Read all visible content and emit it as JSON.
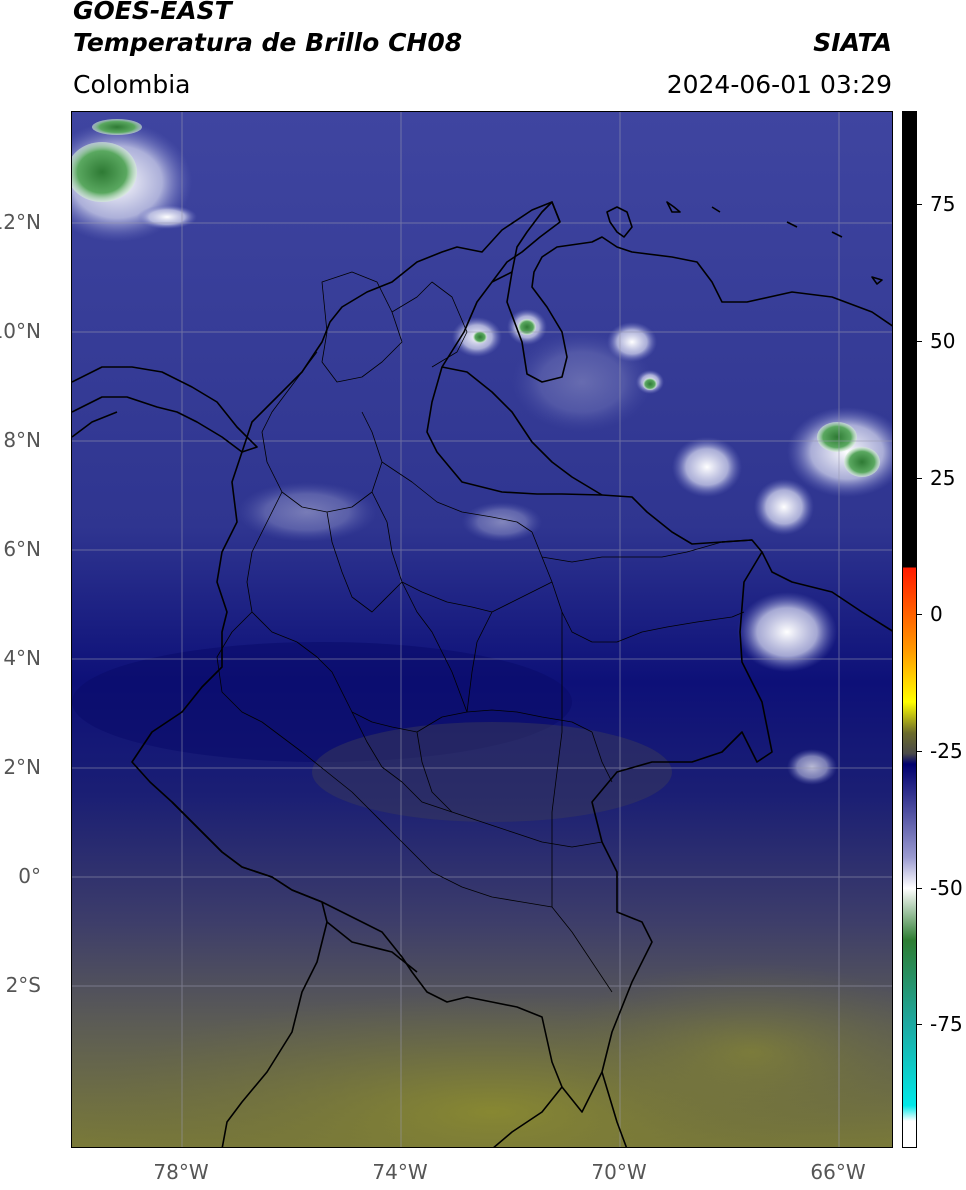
{
  "header": {
    "satellite": "GOES-EAST",
    "product": "Temperatura de Brillo CH08",
    "region": "Colombia",
    "org": "SIATA",
    "datetime": "2024-06-01 03:29"
  },
  "axes": {
    "lat_labels": [
      "12°N",
      "10°N",
      "8°N",
      "6°N",
      "4°N",
      "2°N",
      "0°",
      "2°S"
    ],
    "lon_labels": [
      "78°W",
      "74°W",
      "70°W",
      "66°W"
    ]
  },
  "colorbar": {
    "labels": [
      "75",
      "50",
      "25",
      "0",
      "-25",
      "-50",
      "-75"
    ],
    "colors": {
      "black": "#000000",
      "red": "#ff1a00",
      "orange": "#ff9900",
      "yellow": "#ffff00",
      "olive": "#6b6b2a",
      "gray": "#4a4a4a",
      "navy": "#00006e",
      "blue_light": "#9a9ad0",
      "white": "#ffffff",
      "green": "#2e7d32",
      "teal": "#1ea8a0",
      "cyan": "#00e8e8"
    }
  },
  "map": {
    "colors": {
      "background": "#2a2f8a",
      "land_outline": "#000000",
      "cold_cloud": "#e8eaf6",
      "very_cold": "#2e8b3a",
      "dry_south": "#7a7a3a",
      "mid_gray": "#5a5a5a",
      "grid": "#9a9ab0"
    }
  }
}
